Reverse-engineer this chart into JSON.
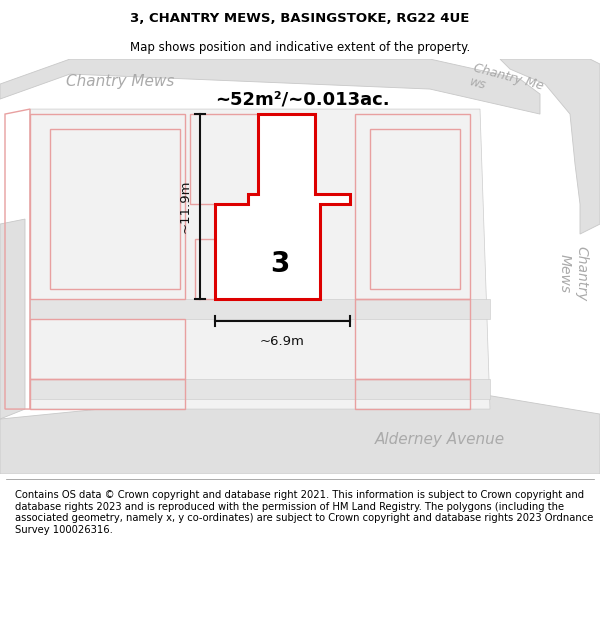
{
  "title": "3, CHANTRY MEWS, BASINGSTOKE, RG22 4UE",
  "subtitle": "Map shows position and indicative extent of the property.",
  "area_label": "~52m²/~0.013ac.",
  "property_number": "3",
  "dim_width": "~6.9m",
  "dim_height": "~11.9m",
  "road_label_top_left": "Chantry Mews",
  "road_label_top_right": "Chantry Me\nws",
  "road_label_right": "Chantry\nMews",
  "road_label_bottom_right": "Alderney Avenue",
  "footer_text": "Contains OS data © Crown copyright and database right 2021. This information is subject to Crown copyright and database rights 2023 and is reproduced with the permission of HM Land Registry. The polygons (including the associated geometry, namely x, y co-ordinates) are subject to Crown copyright and database rights 2023 Ordnance Survey 100026316.",
  "title_fontsize": 9.5,
  "subtitle_fontsize": 8.5,
  "footer_fontsize": 7.2,
  "map_bg": "#ffffff",
  "road_fill": "#e0e0e0",
  "road_edge": "#c8c8c8",
  "block_fill": "#f5f5f5",
  "access_fill": "#e8e8e8",
  "pink_edge": "#e8a0a0",
  "pink_fill": "#ffffff",
  "property_edge": "#dd0000",
  "dim_color": "#111111"
}
